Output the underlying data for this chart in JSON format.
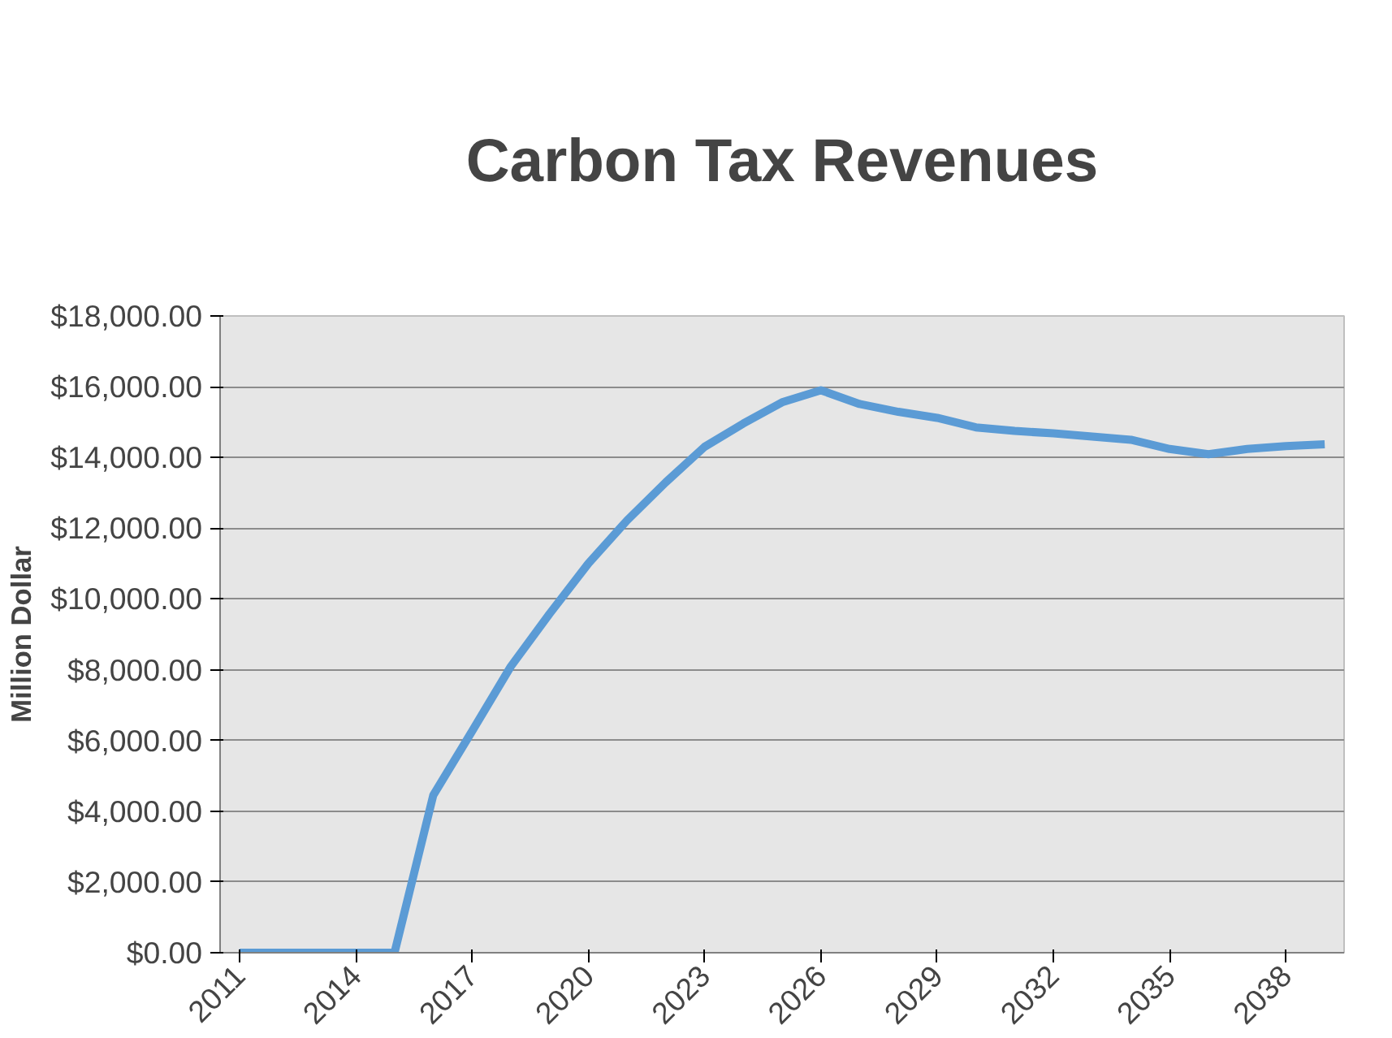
{
  "chart_data": {
    "type": "line",
    "title": "Carbon Tax Revenues",
    "ylabel": "Million Dollar",
    "categories": [
      "2011",
      null,
      null,
      "2014",
      null,
      null,
      "2017",
      null,
      null,
      "2020",
      null,
      null,
      "2023",
      null,
      null,
      "2026",
      null,
      null,
      "2029",
      null,
      null,
      "2032",
      null,
      null,
      "2035",
      null,
      null,
      "2038",
      null
    ],
    "series": [
      {
        "color": "#5b9bd5",
        "values": [
          0,
          0,
          0,
          0,
          0,
          4450,
          6260,
          8090,
          9580,
          11000,
          12220,
          13300,
          14300,
          14960,
          15560,
          15900,
          15510,
          15290,
          15120,
          14850,
          14750,
          14680,
          14590,
          14500,
          14240,
          14090,
          14240,
          14320,
          14370
        ]
      }
    ],
    "ylim": [
      0,
      18000
    ],
    "yticks": [
      {
        "value": 0,
        "label": "$0.00"
      },
      {
        "value": 2000,
        "label": "$2,000.00"
      },
      {
        "value": 4000,
        "label": "$4,000.00"
      },
      {
        "value": 6000,
        "label": "$6,000.00"
      },
      {
        "value": 8000,
        "label": "$8,000.00"
      },
      {
        "value": 10000,
        "label": "$10,000.00"
      },
      {
        "value": 12000,
        "label": "$12,000.00"
      },
      {
        "value": 14000,
        "label": "$14,000.00"
      },
      {
        "value": 16000,
        "label": "$16,000.00"
      },
      {
        "value": 18000,
        "label": "$18,000.00"
      }
    ],
    "grid": "y",
    "marker": "none",
    "line_style": "solid"
  }
}
